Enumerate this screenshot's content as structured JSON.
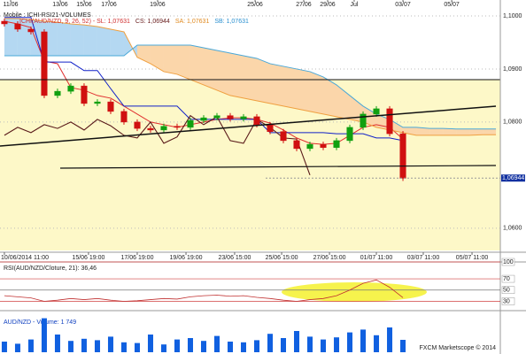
{
  "chart_data": [
    {
      "type": "candlestick",
      "title": "Mobile : ICHI-RSI21-VOLUMES",
      "legend": [
        {
          "text": "ICHI(AUD/NZD, 9, 26, 52) - SL: 1,07631",
          "color": "#d03030"
        },
        {
          "text": "CS: 1,06944",
          "color": "#6a2020"
        },
        {
          "text": "SA: 1,07631",
          "color": "#e08a20"
        },
        {
          "text": "SB: 1,07631",
          "color": "#2a90d0"
        }
      ],
      "xlim": [
        -0.33,
        37.33
      ],
      "x2ticks": [
        {
          "value": 0.47,
          "label": "11/06"
        },
        {
          "value": 4.2,
          "label": "13/06"
        },
        {
          "value": 6,
          "label": "15/06"
        },
        {
          "value": 7.87,
          "label": "17/06"
        },
        {
          "value": 11.53,
          "label": "19/06"
        },
        {
          "value": 18.87,
          "label": "25/06"
        },
        {
          "value": 22.53,
          "label": "27/06"
        },
        {
          "value": 24.33,
          "label": "29/06"
        },
        {
          "value": 26.33,
          "label": "Jul"
        },
        {
          "value": 30,
          "label": "03/07"
        },
        {
          "value": 33.67,
          "label": "05/07"
        }
      ],
      "xticks": [
        {
          "value": 0,
          "label": "10/06/2014 11:00"
        },
        {
          "value": 6.33,
          "label": "15/06 19:00"
        },
        {
          "value": 10,
          "label": "17/06 19:00"
        },
        {
          "value": 13.67,
          "label": "19/06 19:00"
        },
        {
          "value": 17.33,
          "label": "23/06 15:00"
        },
        {
          "value": 20.87,
          "label": "25/06 15:00"
        },
        {
          "value": 24.47,
          "label": "27/06 15:00"
        },
        {
          "value": 28,
          "label": "01/07 11:00"
        },
        {
          "value": 31.53,
          "label": "03/07 11:00"
        },
        {
          "value": 35.2,
          "label": "05/07 11:00"
        }
      ],
      "ylim": [
        1.0558,
        1.103
      ],
      "yticks": [
        {
          "value": 1.1,
          "label": "1,1000"
        },
        {
          "value": 1.09,
          "label": "1,0900"
        },
        {
          "value": 1.08,
          "label": "1,0800"
        },
        {
          "value": 1.06,
          "label": "1,0600"
        }
      ],
      "price_marker": {
        "value": 1.06944,
        "label": "1,06944"
      },
      "up_color": "#10a010",
      "down_color": "#d01010",
      "open": [
        1.099,
        1.0985,
        1.0975,
        1.097,
        1.085,
        1.0858,
        1.0868,
        1.0835,
        1.0838,
        1.082,
        1.08,
        1.0788,
        1.0785,
        1.0792,
        1.079,
        1.0803,
        1.0808,
        1.0812,
        1.0806,
        1.081,
        1.0795,
        1.0782,
        1.0765,
        1.075,
        1.0758,
        1.0752,
        1.0765,
        1.079,
        1.0815,
        1.0825,
        1.0778
      ],
      "high": [
        1.0995,
        1.099,
        1.098,
        1.0975,
        1.0863,
        1.0873,
        1.0873,
        1.0843,
        1.0843,
        1.0825,
        1.0805,
        1.0793,
        1.0797,
        1.0797,
        1.0808,
        1.0813,
        1.0817,
        1.0817,
        1.0815,
        1.0815,
        1.08,
        1.0787,
        1.077,
        1.0763,
        1.0763,
        1.077,
        1.0795,
        1.082,
        1.083,
        1.083,
        1.0783
      ],
      "low": [
        1.098,
        1.097,
        1.0965,
        1.0845,
        1.0845,
        1.0853,
        1.083,
        1.083,
        1.0815,
        1.0795,
        1.0783,
        1.078,
        1.078,
        1.0785,
        1.0785,
        1.0798,
        1.0803,
        1.0801,
        1.0801,
        1.079,
        1.0777,
        1.076,
        1.0745,
        1.0745,
        1.0747,
        1.0747,
        1.076,
        1.0785,
        1.081,
        1.0773,
        1.0689
      ],
      "close": [
        1.0985,
        1.0975,
        1.097,
        1.085,
        1.0858,
        1.0868,
        1.0835,
        1.0838,
        1.082,
        1.08,
        1.0788,
        1.0785,
        1.0792,
        1.079,
        1.0803,
        1.0808,
        1.0812,
        1.0806,
        1.081,
        1.0795,
        1.0782,
        1.0765,
        1.075,
        1.0758,
        1.0752,
        1.0765,
        1.079,
        1.0815,
        1.0825,
        1.0778,
        1.0694
      ],
      "cloud_colors": [
        "#b4d8f2",
        "#fbd6aa"
      ],
      "overlays": [
        {
          "color": "#e03030",
          "values": [
            1.099,
            1.0985,
            1.0978,
            1.0915,
            1.091,
            1.0865,
            1.086,
            1.085,
            1.0845,
            1.083,
            1.0815,
            1.08,
            1.0795,
            1.079,
            1.0795,
            1.08,
            1.0805,
            1.0808,
            1.0808,
            1.0805,
            1.0798,
            1.0785,
            1.077,
            1.076,
            1.0758,
            1.076,
            1.0775,
            1.079,
            1.0795,
            1.079,
            1.0768,
            null,
            null,
            null,
            null,
            null,
            null,
            null
          ]
        },
        {
          "color": "#1020c8",
          "values": [
            1.0997,
            1.0997,
            1.0997,
            1.0913,
            1.0913,
            1.0913,
            1.0897,
            1.0897,
            1.0863,
            1.083,
            1.083,
            1.083,
            1.083,
            1.083,
            1.0805,
            1.0805,
            1.0805,
            1.0805,
            1.0805,
            1.0805,
            1.078,
            1.078,
            1.078,
            1.078,
            1.078,
            1.0778,
            1.0778,
            1.0778,
            1.077,
            1.077,
            1.0765,
            null,
            null,
            null,
            null,
            null,
            null,
            null
          ]
        },
        {
          "color": "#5a1a1a",
          "values": [
            1.0775,
            1.079,
            1.078,
            1.0795,
            1.0788,
            1.08,
            1.0785,
            1.0805,
            1.0793,
            1.0775,
            1.077,
            1.08,
            1.076,
            1.0772,
            1.0812,
            1.0795,
            1.081,
            1.0765,
            1.076,
            1.0805,
            1.079,
            1.077,
            1.0768,
            1.07,
            null,
            null,
            null,
            null,
            null,
            null,
            null,
            null,
            null,
            null,
            null,
            null,
            null,
            null
          ]
        },
        {
          "color": "#f0a040",
          "values": [
            1.0995,
            1.0995,
            1.0993,
            1.099,
            1.0988,
            1.0985,
            1.0983,
            1.098,
            1.0975,
            1.097,
            1.0922,
            1.091,
            1.0895,
            1.089,
            1.088,
            1.087,
            1.086,
            1.085,
            1.0845,
            1.084,
            1.0835,
            1.083,
            1.0825,
            1.082,
            1.0815,
            1.081,
            1.0805,
            1.08,
            1.079,
            1.0785,
            1.078,
            1.0775,
            1.0775,
            1.0775,
            1.0775,
            1.0775,
            1.0776,
            1.0776
          ]
        },
        {
          "color": "#4aa8d8",
          "values": [
            1.0925,
            1.0925,
            1.0925,
            1.0925,
            1.0925,
            1.0925,
            1.0925,
            1.0925,
            1.0925,
            1.0925,
            1.0945,
            1.0945,
            1.0945,
            1.0945,
            1.0945,
            1.094,
            1.0935,
            1.093,
            1.0925,
            1.092,
            1.091,
            1.0905,
            1.09,
            1.0895,
            1.0885,
            1.087,
            1.085,
            1.083,
            1.0815,
            1.0805,
            1.079,
            1.079,
            1.0788,
            1.0788,
            1.0787,
            1.0787,
            1.0787,
            1.0787
          ]
        }
      ]
    },
    {
      "type": "line",
      "title": "RSI(AUD/NZD/Cloture, 21): 36,46",
      "xlim": [
        -0.33,
        37.33
      ],
      "ylim": [
        15,
        100
      ],
      "yticks": [
        100,
        70,
        50,
        30
      ],
      "color": "#c03030",
      "values": [
        40,
        38,
        36,
        30,
        32,
        35,
        33,
        35,
        32,
        30,
        31,
        33,
        35,
        34,
        38,
        40,
        41,
        39,
        40,
        37,
        35,
        32,
        30,
        33,
        35,
        40,
        50,
        62,
        68,
        55,
        36.46
      ]
    },
    {
      "type": "bar",
      "title": "AUD/NZD - Volume: 1 749",
      "footer": "FXCM Marketscope © 2014",
      "xlim": [
        -0.33,
        37.33
      ],
      "ylim": [
        0,
        5000
      ],
      "color": "#1060e0",
      "values": [
        1500,
        1200,
        1800,
        4800,
        2500,
        1600,
        1900,
        1700,
        2200,
        1400,
        1300,
        2500,
        1100,
        1800,
        2000,
        1600,
        2300,
        1500,
        1400,
        1700,
        2600,
        2000,
        3000,
        2200,
        1800,
        2100,
        2800,
        3200,
        2400,
        3500,
        1749
      ]
    }
  ]
}
